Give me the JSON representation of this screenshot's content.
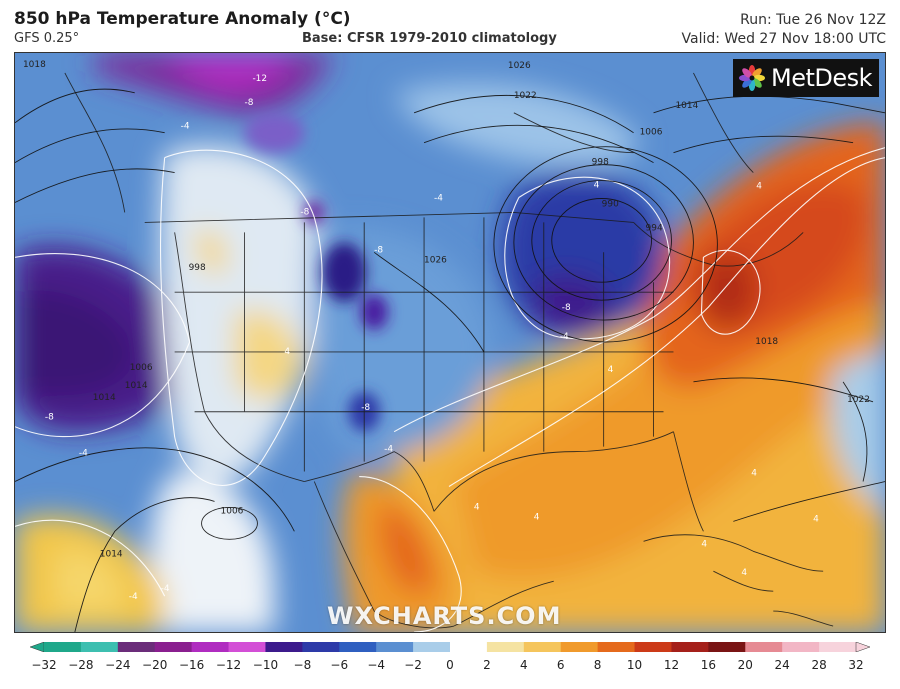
{
  "header": {
    "title": "850 hPa Temperature Anomaly (°C)",
    "subtitle": "GFS 0.25°",
    "base": "Base: CFSR 1979-2010 climatology",
    "run": "Run: Tue 26 Nov 12Z",
    "valid": "Valid: Wed 27 Nov 18:00 UTC"
  },
  "logo": {
    "text": "MetDesk",
    "icon": "metdesk-flower-icon"
  },
  "watermark": "WXCHARTS.COM",
  "colorbar": {
    "ticks": [
      "−32",
      "−28",
      "−24",
      "−20",
      "−16",
      "−12",
      "−10",
      "−8",
      "−6",
      "−4",
      "−2",
      "0",
      "2",
      "4",
      "6",
      "8",
      "10",
      "12",
      "16",
      "20",
      "24",
      "28",
      "32"
    ],
    "colors": [
      "#1fa88a",
      "#3dbfb0",
      "#6b2d7a",
      "#8a1f8f",
      "#b02cc0",
      "#d34fd6",
      "#3c1a8c",
      "#2d3aa8",
      "#2f5fc0",
      "#5b8fd1",
      "#a9cde9",
      "#ffffff",
      "#f5e3a2",
      "#f5c55c",
      "#f09a2c",
      "#e56a1c",
      "#cc3a18",
      "#a5201a",
      "#7a1414",
      "#e68a93",
      "#f2b6c5",
      "#f7d3dc"
    ]
  },
  "map": {
    "pressure_labels": [
      "1018",
      "1014",
      "1026",
      "1022",
      "1006",
      "1014",
      "998",
      "990",
      "994",
      "998",
      "1026",
      "1014",
      "1006",
      "1018",
      "1022",
      "1006",
      "1014"
    ],
    "anomaly_labels": [
      "-12",
      "-8",
      "-4",
      "-8",
      "-8",
      "-8",
      "-8",
      "-4",
      "4",
      "4",
      "4",
      "4",
      "4",
      "-4",
      "-8",
      "-4",
      "-4",
      "4",
      "-4",
      "4",
      "4",
      "4",
      "4",
      "-4"
    ]
  }
}
